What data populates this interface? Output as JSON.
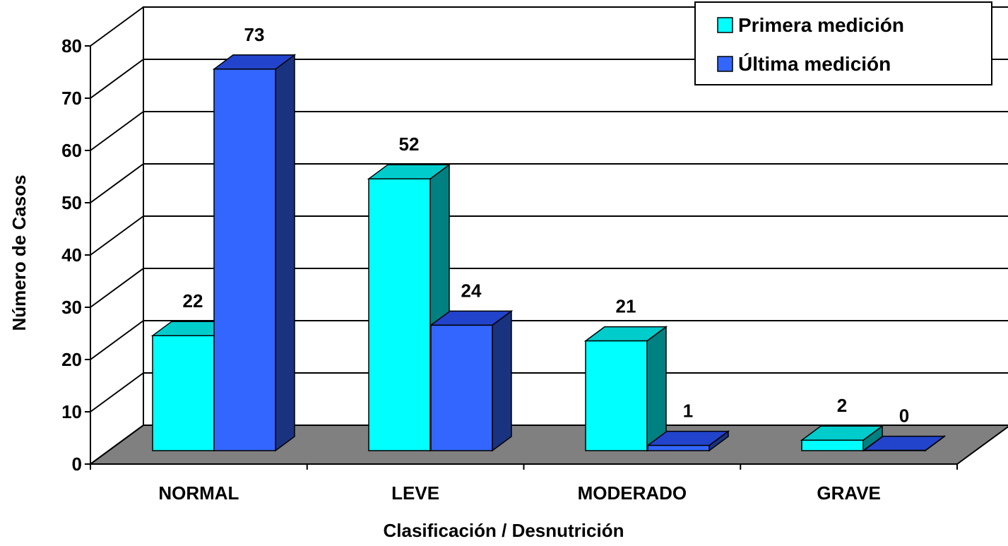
{
  "chart_data": {
    "type": "bar",
    "title": "",
    "xlabel": "Clasificación / Desnutrición",
    "ylabel": "Número de Casos",
    "ylim": [
      0,
      80
    ],
    "yticks": [
      "0",
      "10",
      "20",
      "30",
      "40",
      "50",
      "60",
      "70",
      "80"
    ],
    "categories": [
      "NORMAL",
      "LEVE",
      "MODERADO",
      "GRAVE"
    ],
    "series": [
      {
        "name": "Primera medición",
        "values": [
          22,
          52,
          21,
          2
        ],
        "color": "#00FFFF"
      },
      {
        "name": "Última medición",
        "values": [
          73,
          24,
          1,
          0
        ],
        "color": "#3366FF"
      }
    ],
    "grid": true,
    "legend_position": "top-right",
    "style": "3d-clustered-columns"
  }
}
